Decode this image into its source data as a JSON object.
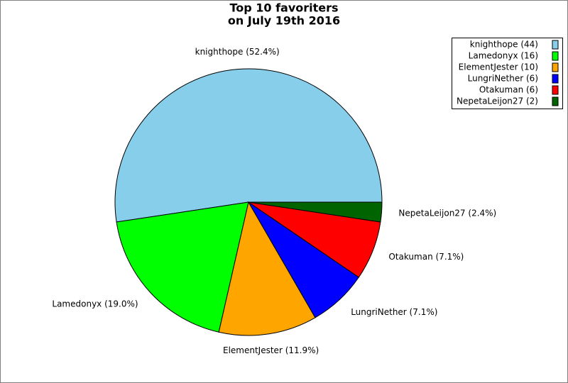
{
  "chart_data": {
    "type": "pie",
    "title_lines": [
      "Top 10 favoriters",
      "on July 19th 2016"
    ],
    "categories": [
      "knighthope",
      "Lamedonyx",
      "ElementJester",
      "LungriNether",
      "Otakuman",
      "NepetaLeijon27"
    ],
    "values": [
      44,
      16,
      10,
      6,
      6,
      2
    ],
    "slice_labels": [
      "knighthope (52.4%)",
      "Lamedonyx (19.0%)",
      "ElementJester (11.9%)",
      "LungriNether (7.1%)",
      "Otakuman (7.1%)",
      "NepetaLeijon27 (2.4%)"
    ],
    "legend_labels": [
      "knighthope (44)",
      "Lamedonyx (16)",
      "ElementJester (10)",
      "LungriNether (6)",
      "Otakuman (6)",
      "NepetaLeijon27 (2)"
    ],
    "colors": [
      "#87ceeb",
      "#00ff00",
      "#ffa500",
      "#0000ff",
      "#ff0000",
      "#006400"
    ],
    "legend": "upper right"
  }
}
